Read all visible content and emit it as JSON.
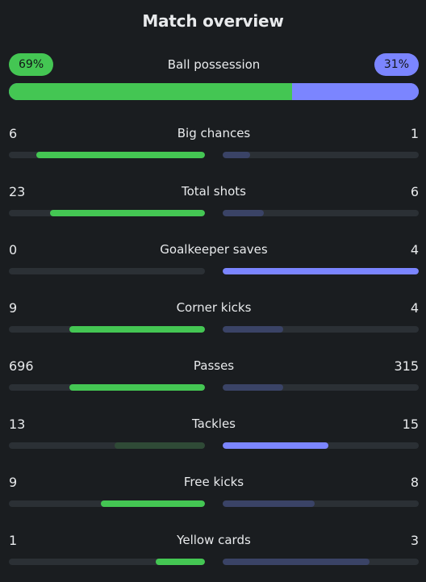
{
  "title": "Match overview",
  "possession": {
    "label": "Ball possession",
    "home_text": "69%",
    "away_text": "31%",
    "home_pct": 69,
    "away_pct": 31
  },
  "colors": {
    "home": "#44c653",
    "home_dim": "#2f4a36",
    "away": "#7b85ff",
    "away_dim": "#3a4366",
    "track": "#2b3035"
  },
  "stats": [
    {
      "label": "Big chances",
      "home": "6",
      "away": "1",
      "home_fill": 0.86,
      "away_fill": 0.14,
      "home_state": "bright",
      "away_state": "dim"
    },
    {
      "label": "Total shots",
      "home": "23",
      "away": "6",
      "home_fill": 0.79,
      "away_fill": 0.21,
      "home_state": "bright",
      "away_state": "dim"
    },
    {
      "label": "Goalkeeper saves",
      "home": "0",
      "away": "4",
      "home_fill": 0.0,
      "away_fill": 1.0,
      "home_state": "bright",
      "away_state": "bright"
    },
    {
      "label": "Corner kicks",
      "home": "9",
      "away": "4",
      "home_fill": 0.69,
      "away_fill": 0.31,
      "home_state": "bright",
      "away_state": "dim"
    },
    {
      "label": "Passes",
      "home": "696",
      "away": "315",
      "home_fill": 0.69,
      "away_fill": 0.31,
      "home_state": "bright",
      "away_state": "dim"
    },
    {
      "label": "Tackles",
      "home": "13",
      "away": "15",
      "home_fill": 0.46,
      "away_fill": 0.54,
      "home_state": "dim",
      "away_state": "bright"
    },
    {
      "label": "Free kicks",
      "home": "9",
      "away": "8",
      "home_fill": 0.53,
      "away_fill": 0.47,
      "home_state": "bright",
      "away_state": "dim"
    },
    {
      "label": "Yellow cards",
      "home": "1",
      "away": "3",
      "home_fill": 0.25,
      "away_fill": 0.75,
      "home_state": "bright",
      "away_state": "dim"
    }
  ]
}
